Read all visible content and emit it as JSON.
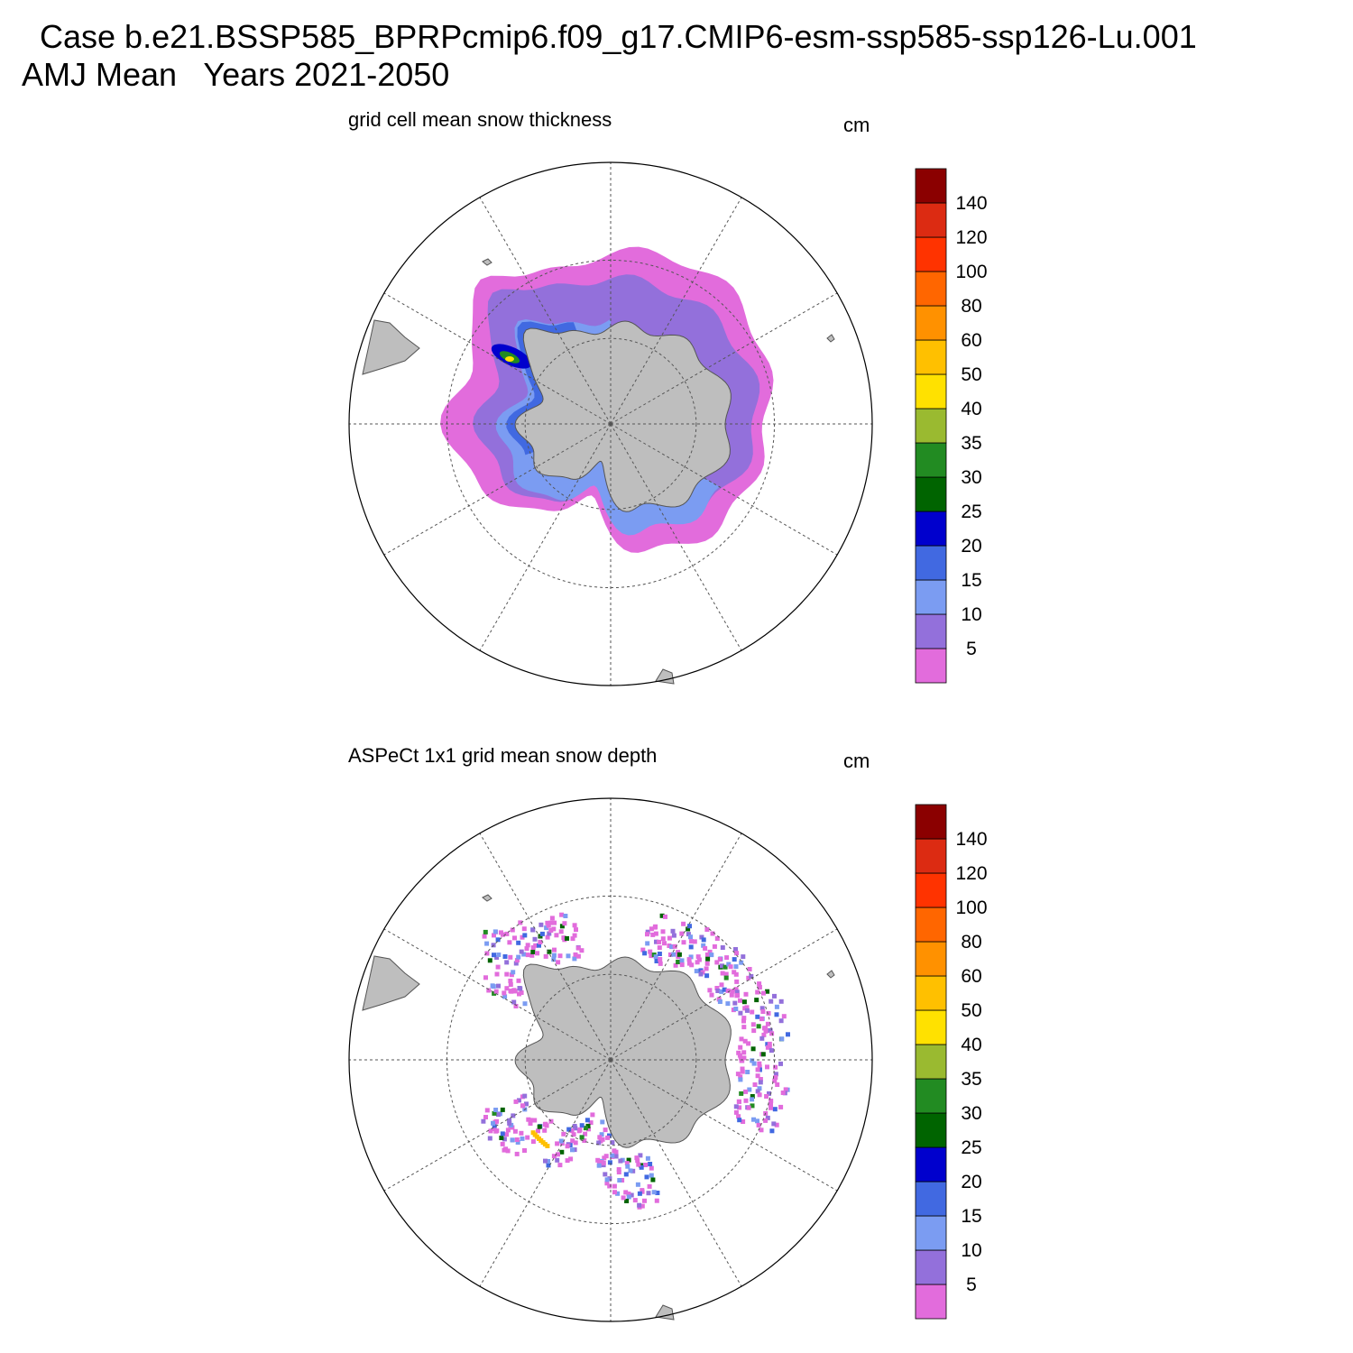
{
  "figure": {
    "title_line1": "  Case b.e21.BSSP585_BPRPcmip6.f09_g17.CMIP6-esm-ssp585-ssp126-Lu.001",
    "title_line2": "AMJ Mean   Years 2021-2050"
  },
  "panels": [
    {
      "title": "grid cell mean snow thickness",
      "units": "cm"
    },
    {
      "title": "ASPeCt 1x1 grid mean snow depth",
      "units": "cm"
    }
  ],
  "colorbar": {
    "labels": [
      "5",
      "10",
      "15",
      "20",
      "25",
      "30",
      "35",
      "40",
      "50",
      "60",
      "80",
      "100",
      "120",
      "140"
    ],
    "colors": [
      "#e26cdc",
      "#9370db",
      "#7b9cf2",
      "#4169e1",
      "#0000cd",
      "#006400",
      "#228b22",
      "#9aba30",
      "#ffe100",
      "#ffc000",
      "#ff9100",
      "#ff6600",
      "#ff3300",
      "#dc2b12",
      "#8b0000"
    ]
  },
  "colors": {
    "land": "#bebebe",
    "land_edge": "#555555"
  }
}
